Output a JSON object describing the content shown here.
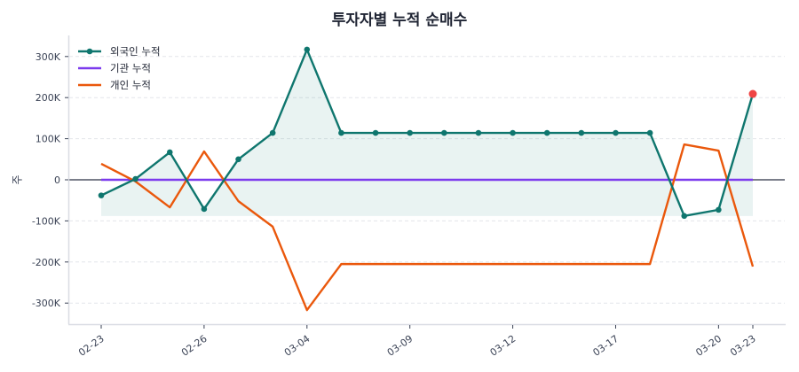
{
  "chart_data": {
    "type": "line",
    "title": "투자자별 누적 순매수",
    "xlabel": "",
    "ylabel": "주",
    "ylim": [
      -345000,
      352000
    ],
    "yticks": [
      -300000,
      -200000,
      -100000,
      0,
      100000,
      200000,
      300000
    ],
    "ytick_labels": [
      "-300K",
      "-200K",
      "-100K",
      "0",
      "100K",
      "200K",
      "300K"
    ],
    "x_count": 20,
    "x_tick_indices": [
      0,
      3,
      6,
      9,
      12,
      15,
      18,
      19
    ],
    "x_tick_labels": [
      "02-23",
      "02-26",
      "03-04",
      "03-09",
      "03-12",
      "03-17",
      "03-20",
      "03-23"
    ],
    "grid": true,
    "legend_position": "upper left",
    "series": [
      {
        "name": "외국인 누적",
        "color": "#0f766e",
        "markers": true,
        "fill_to_min": true,
        "fill_color": "#0f766e",
        "last_point_color": "#ef4444",
        "values": [
          -38000,
          2000,
          67000,
          -71000,
          50000,
          114000,
          317000,
          114000,
          114000,
          114000,
          114000,
          114000,
          114000,
          114000,
          114000,
          114000,
          114000,
          -88000,
          -73000,
          209000
        ]
      },
      {
        "name": "기관 누적",
        "color": "#7c3aed",
        "markers": false,
        "values": [
          0,
          0,
          0,
          0,
          0,
          0,
          0,
          0,
          0,
          0,
          0,
          0,
          0,
          0,
          0,
          0,
          0,
          0,
          0,
          0
        ]
      },
      {
        "name": "개인 누적",
        "color": "#ea580c",
        "markers": false,
        "values": [
          39000,
          -4000,
          -67000,
          69000,
          -52000,
          -114000,
          -317000,
          -205000,
          -205000,
          -205000,
          -205000,
          -205000,
          -205000,
          -205000,
          -205000,
          -205000,
          -205000,
          86000,
          71000,
          -211000
        ]
      }
    ],
    "zero_line_color": "#2b3145"
  }
}
